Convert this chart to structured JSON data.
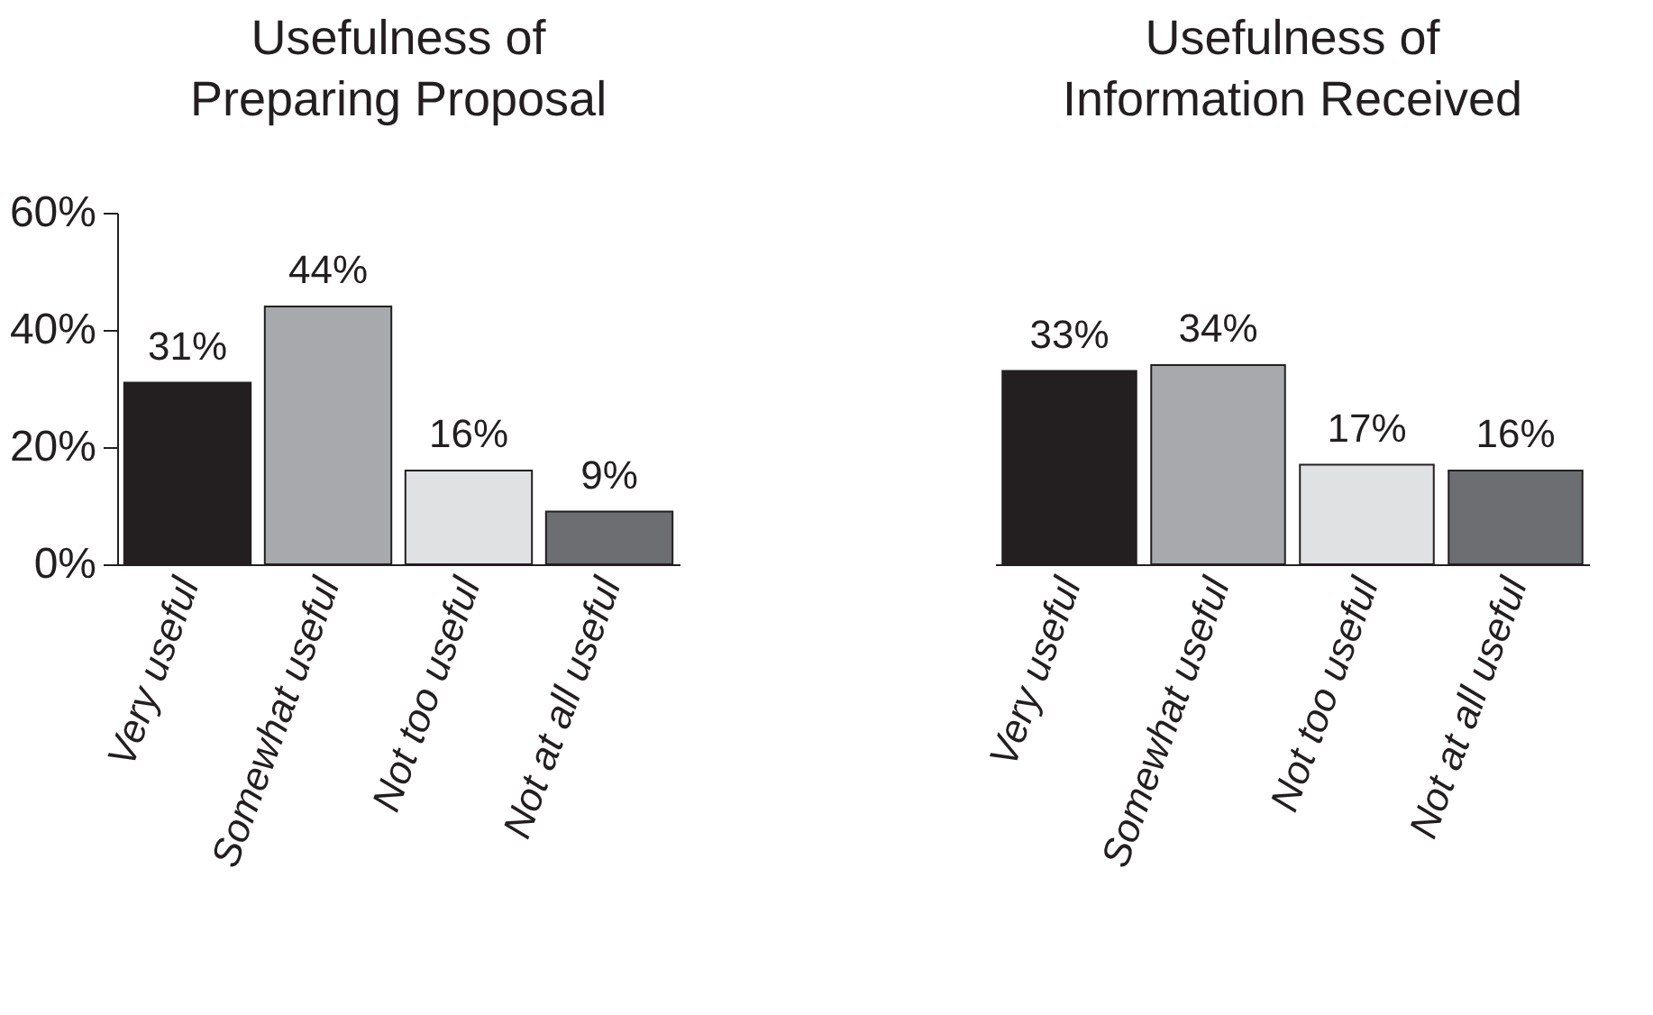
{
  "chart_data": [
    {
      "type": "bar",
      "title": "Usefulness of\nPreparing Proposal",
      "categories": [
        "Very useful",
        "Somewhat useful",
        "Not too useful",
        "Not at all useful"
      ],
      "values": [
        31,
        44,
        16,
        9
      ],
      "value_labels": [
        "31%",
        "44%",
        "16%",
        "9%"
      ],
      "colors": [
        "#231f20",
        "#a7a9ac",
        "#e0e1e2",
        "#6d6e71"
      ],
      "ylim": [
        0,
        60
      ],
      "yticks": [
        {
          "value": 0,
          "label": "0%"
        },
        {
          "value": 20,
          "label": "20%"
        },
        {
          "value": 40,
          "label": "40%"
        },
        {
          "value": 60,
          "label": "60%"
        }
      ],
      "grid": false
    },
    {
      "type": "bar",
      "title": "Usefulness of\nInformation Received",
      "categories": [
        "Very useful",
        "Somewhat useful",
        "Not too useful",
        "Not at all useful"
      ],
      "values": [
        33,
        34,
        17,
        16
      ],
      "value_labels": [
        "33%",
        "34%",
        "17%",
        "16%"
      ],
      "colors": [
        "#231f20",
        "#a7a9ac",
        "#e0e1e2",
        "#6d6e71"
      ],
      "ylim": [
        0,
        60
      ],
      "tick_labels": "x",
      "grid": false
    }
  ]
}
